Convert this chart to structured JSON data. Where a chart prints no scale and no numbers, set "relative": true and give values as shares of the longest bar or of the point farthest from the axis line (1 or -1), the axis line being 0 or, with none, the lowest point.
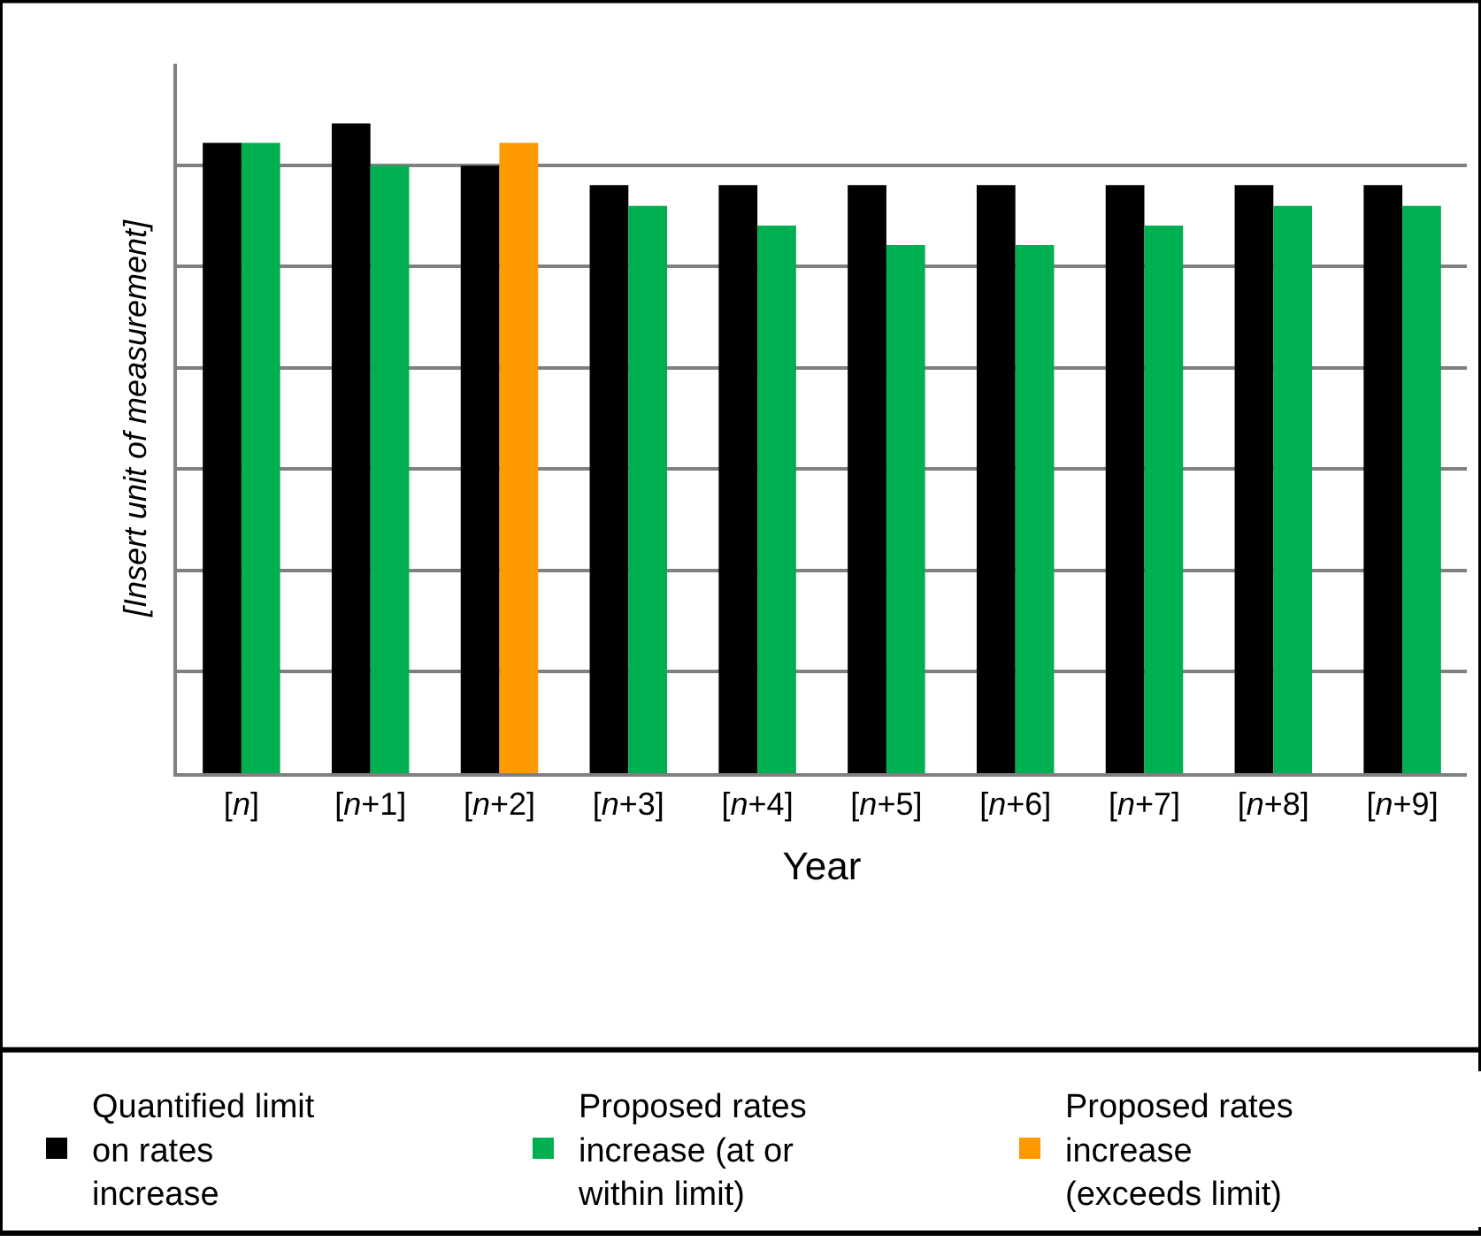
{
  "chart_data": {
    "type": "bar",
    "relative": true,
    "xlabel": "Year",
    "ylabel": "[Insert unit of measurement]",
    "categories": [
      "[n]",
      "[n+1]",
      "[n+2]",
      "[n+3]",
      "[n+4]",
      "[n+5]",
      "[n+6]",
      "[n+7]",
      "[n+8]",
      "[n+9]"
    ],
    "series": [
      {
        "name": "Quantified limit on rates increase",
        "color": "#000000",
        "values": [
          0.97,
          1,
          0.935,
          0.905,
          0.905,
          0.905,
          0.905,
          0.905,
          0.905,
          0.905
        ]
      },
      {
        "name": "Proposed rates increase (at or within limit)",
        "color": "#00b050",
        "values": [
          0.97,
          0.935,
          null,
          0.873,
          0.843,
          0.813,
          0.813,
          0.843,
          0.873,
          0.873
        ]
      },
      {
        "name": "Proposed rates increase (exceeds limit)",
        "color": "#ff9900",
        "values": [
          null,
          null,
          0.97,
          null,
          null,
          null,
          null,
          null,
          null,
          null
        ]
      }
    ],
    "grid": "y",
    "legend": "bottom",
    "tick_labels": "x"
  }
}
